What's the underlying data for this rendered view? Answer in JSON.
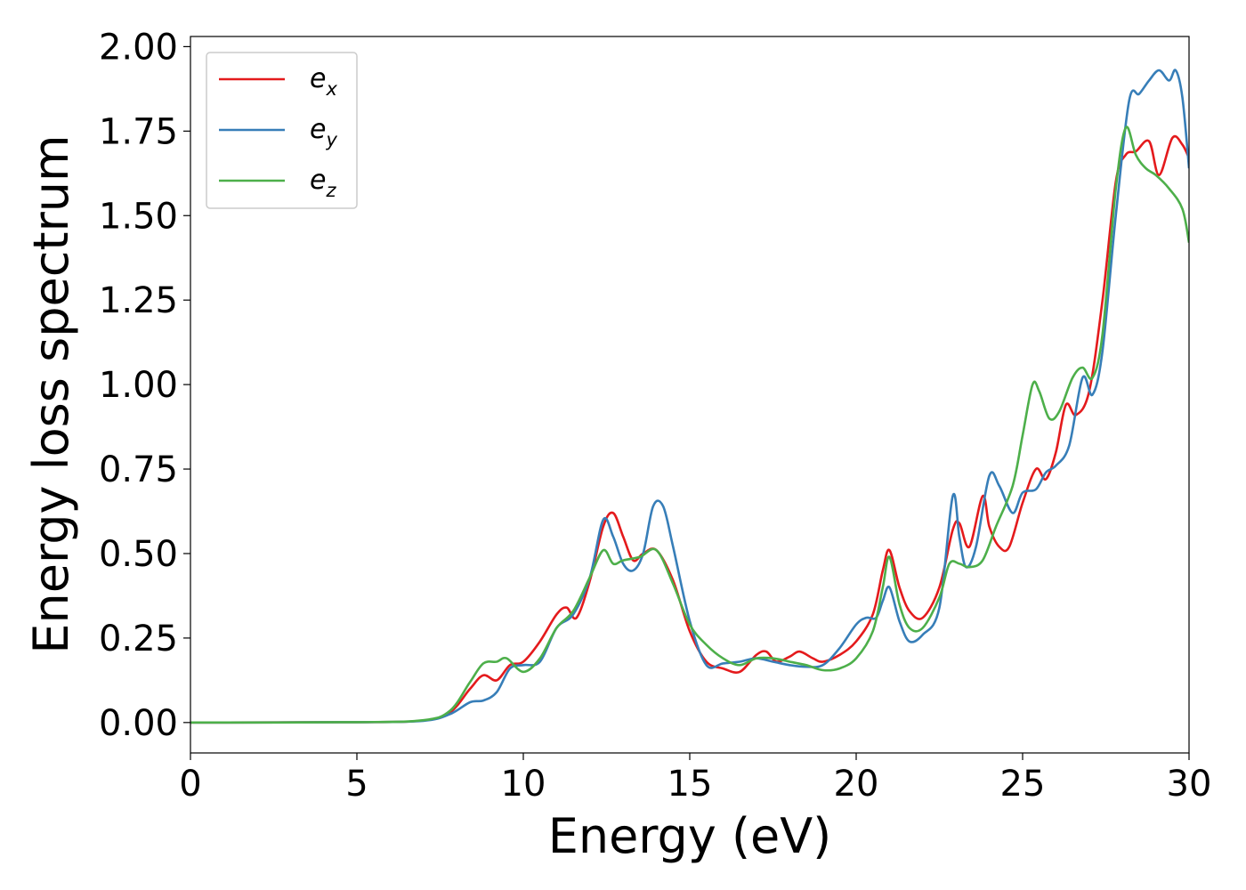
{
  "chart_data": {
    "type": "line",
    "title": "",
    "xlabel": "Energy (eV)",
    "ylabel": "Energy loss spectrum",
    "xlim": [
      0,
      30
    ],
    "ylim": [
      -0.09,
      2.03
    ],
    "xticks": [
      0,
      5,
      10,
      15,
      20,
      25,
      30
    ],
    "xtick_labels": [
      "0",
      "5",
      "10",
      "15",
      "20",
      "25",
      "30"
    ],
    "yticks": [
      0,
      0.25,
      0.5,
      0.75,
      1.0,
      1.25,
      1.5,
      1.75,
      2.0
    ],
    "ytick_labels": [
      "0.00",
      "0.25",
      "0.50",
      "0.75",
      "1.00",
      "1.25",
      "1.50",
      "1.75",
      "2.00"
    ],
    "grid": false,
    "legend_position": "top-left",
    "series": [
      {
        "name": "e",
        "subscript": "x",
        "color": "#e41a1c",
        "points": [
          [
            0,
            0
          ],
          [
            5,
            0.001
          ],
          [
            7,
            0.006
          ],
          [
            7.8,
            0.03
          ],
          [
            8.4,
            0.1
          ],
          [
            8.8,
            0.14
          ],
          [
            9.2,
            0.125
          ],
          [
            9.6,
            0.17
          ],
          [
            10,
            0.18
          ],
          [
            10.5,
            0.24
          ],
          [
            11,
            0.32
          ],
          [
            11.3,
            0.34
          ],
          [
            11.6,
            0.31
          ],
          [
            12,
            0.42
          ],
          [
            12.4,
            0.58
          ],
          [
            12.7,
            0.62
          ],
          [
            13,
            0.55
          ],
          [
            13.3,
            0.48
          ],
          [
            13.6,
            0.5
          ],
          [
            14,
            0.51
          ],
          [
            14.5,
            0.42
          ],
          [
            15,
            0.27
          ],
          [
            15.5,
            0.18
          ],
          [
            16,
            0.16
          ],
          [
            16.5,
            0.15
          ],
          [
            17,
            0.2
          ],
          [
            17.3,
            0.21
          ],
          [
            17.6,
            0.18
          ],
          [
            18,
            0.195
          ],
          [
            18.3,
            0.21
          ],
          [
            18.7,
            0.19
          ],
          [
            19,
            0.18
          ],
          [
            19.5,
            0.2
          ],
          [
            20,
            0.24
          ],
          [
            20.5,
            0.32
          ],
          [
            20.8,
            0.45
          ],
          [
            21,
            0.51
          ],
          [
            21.3,
            0.4
          ],
          [
            21.6,
            0.33
          ],
          [
            22,
            0.31
          ],
          [
            22.5,
            0.4
          ],
          [
            22.9,
            0.57
          ],
          [
            23.1,
            0.59
          ],
          [
            23.4,
            0.52
          ],
          [
            23.8,
            0.67
          ],
          [
            24,
            0.58
          ],
          [
            24.3,
            0.52
          ],
          [
            24.6,
            0.52
          ],
          [
            25,
            0.65
          ],
          [
            25.4,
            0.75
          ],
          [
            25.7,
            0.72
          ],
          [
            26,
            0.8
          ],
          [
            26.3,
            0.94
          ],
          [
            26.6,
            0.91
          ],
          [
            27,
            0.98
          ],
          [
            27.4,
            1.25
          ],
          [
            27.8,
            1.6
          ],
          [
            28.1,
            1.68
          ],
          [
            28.4,
            1.69
          ],
          [
            28.8,
            1.72
          ],
          [
            29.1,
            1.62
          ],
          [
            29.5,
            1.73
          ],
          [
            29.8,
            1.71
          ],
          [
            30,
            1.67
          ]
        ]
      },
      {
        "name": "e",
        "subscript": "y",
        "color": "#377eb8",
        "points": [
          [
            0,
            0
          ],
          [
            5,
            0.001
          ],
          [
            7,
            0.005
          ],
          [
            7.8,
            0.025
          ],
          [
            8.4,
            0.06
          ],
          [
            8.8,
            0.065
          ],
          [
            9.2,
            0.09
          ],
          [
            9.6,
            0.16
          ],
          [
            10,
            0.17
          ],
          [
            10.5,
            0.18
          ],
          [
            11,
            0.28
          ],
          [
            11.5,
            0.32
          ],
          [
            12,
            0.43
          ],
          [
            12.4,
            0.6
          ],
          [
            12.7,
            0.55
          ],
          [
            13,
            0.47
          ],
          [
            13.3,
            0.45
          ],
          [
            13.6,
            0.5
          ],
          [
            13.9,
            0.64
          ],
          [
            14.2,
            0.64
          ],
          [
            14.5,
            0.52
          ],
          [
            15,
            0.3
          ],
          [
            15.5,
            0.17
          ],
          [
            16,
            0.175
          ],
          [
            16.5,
            0.18
          ],
          [
            17,
            0.19
          ],
          [
            17.5,
            0.18
          ],
          [
            18,
            0.17
          ],
          [
            18.5,
            0.165
          ],
          [
            19,
            0.17
          ],
          [
            19.5,
            0.22
          ],
          [
            20,
            0.29
          ],
          [
            20.3,
            0.31
          ],
          [
            20.6,
            0.31
          ],
          [
            20.8,
            0.36
          ],
          [
            21,
            0.4
          ],
          [
            21.3,
            0.3
          ],
          [
            21.6,
            0.24
          ],
          [
            22,
            0.26
          ],
          [
            22.5,
            0.34
          ],
          [
            22.9,
            0.67
          ],
          [
            23.1,
            0.55
          ],
          [
            23.3,
            0.46
          ],
          [
            23.6,
            0.52
          ],
          [
            24,
            0.73
          ],
          [
            24.3,
            0.7
          ],
          [
            24.7,
            0.62
          ],
          [
            25,
            0.68
          ],
          [
            25.4,
            0.69
          ],
          [
            25.7,
            0.74
          ],
          [
            26,
            0.76
          ],
          [
            26.4,
            0.82
          ],
          [
            26.8,
            1.02
          ],
          [
            27.1,
            0.97
          ],
          [
            27.4,
            1.1
          ],
          [
            27.8,
            1.5
          ],
          [
            28.2,
            1.84
          ],
          [
            28.5,
            1.86
          ],
          [
            28.8,
            1.9
          ],
          [
            29.1,
            1.93
          ],
          [
            29.4,
            1.9
          ],
          [
            29.6,
            1.93
          ],
          [
            29.8,
            1.85
          ],
          [
            30,
            1.64
          ]
        ]
      },
      {
        "name": "e",
        "subscript": "z",
        "color": "#4daf4a",
        "points": [
          [
            0,
            0
          ],
          [
            5,
            0.001
          ],
          [
            7,
            0.007
          ],
          [
            7.8,
            0.035
          ],
          [
            8.4,
            0.12
          ],
          [
            8.8,
            0.175
          ],
          [
            9.2,
            0.18
          ],
          [
            9.5,
            0.19
          ],
          [
            10,
            0.15
          ],
          [
            10.5,
            0.19
          ],
          [
            11,
            0.28
          ],
          [
            11.5,
            0.33
          ],
          [
            12,
            0.43
          ],
          [
            12.4,
            0.51
          ],
          [
            12.7,
            0.47
          ],
          [
            13,
            0.48
          ],
          [
            13.5,
            0.49
          ],
          [
            14,
            0.51
          ],
          [
            14.5,
            0.41
          ],
          [
            15,
            0.29
          ],
          [
            15.5,
            0.23
          ],
          [
            16,
            0.19
          ],
          [
            16.5,
            0.17
          ],
          [
            17,
            0.19
          ],
          [
            17.5,
            0.19
          ],
          [
            18,
            0.18
          ],
          [
            18.5,
            0.17
          ],
          [
            19,
            0.155
          ],
          [
            19.5,
            0.16
          ],
          [
            20,
            0.19
          ],
          [
            20.5,
            0.27
          ],
          [
            20.8,
            0.4
          ],
          [
            21,
            0.49
          ],
          [
            21.3,
            0.35
          ],
          [
            21.6,
            0.28
          ],
          [
            22,
            0.28
          ],
          [
            22.5,
            0.37
          ],
          [
            22.8,
            0.47
          ],
          [
            23.1,
            0.47
          ],
          [
            23.4,
            0.46
          ],
          [
            23.8,
            0.48
          ],
          [
            24.2,
            0.58
          ],
          [
            24.7,
            0.7
          ],
          [
            25,
            0.85
          ],
          [
            25.3,
            1.0
          ],
          [
            25.5,
            0.98
          ],
          [
            25.8,
            0.9
          ],
          [
            26.1,
            0.92
          ],
          [
            26.5,
            1.02
          ],
          [
            26.8,
            1.05
          ],
          [
            27.1,
            1.02
          ],
          [
            27.4,
            1.15
          ],
          [
            27.8,
            1.58
          ],
          [
            28.1,
            1.76
          ],
          [
            28.4,
            1.68
          ],
          [
            28.7,
            1.64
          ],
          [
            29,
            1.62
          ],
          [
            29.4,
            1.58
          ],
          [
            29.8,
            1.52
          ],
          [
            30,
            1.42
          ]
        ]
      }
    ]
  }
}
